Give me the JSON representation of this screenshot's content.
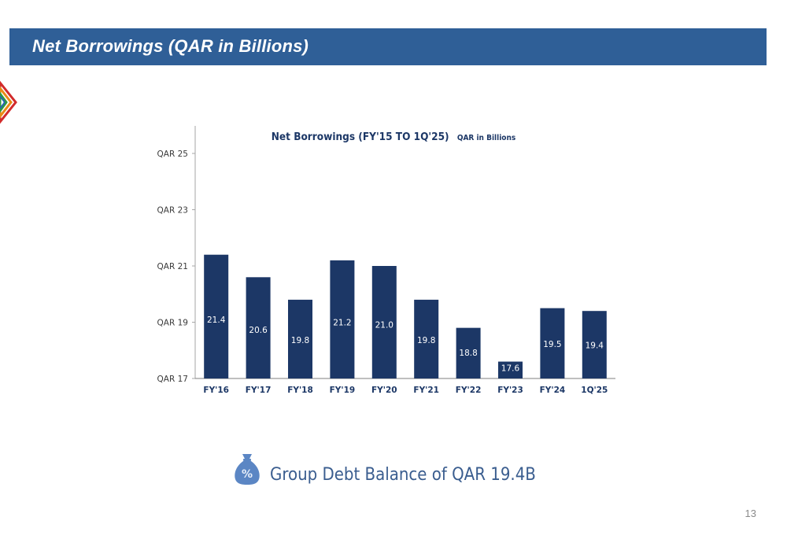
{
  "slide": {
    "title": "Net Borrowings (QAR in Billions)",
    "page_number": "13"
  },
  "callout": {
    "text": "Group Debt Balance of QAR 19.4B",
    "icon": "money-bag-percent-icon"
  },
  "colors": {
    "header": "#2f5f97",
    "bar": "#1c3766",
    "callout_text": "#3a5d8f"
  },
  "chart_data": {
    "type": "bar",
    "title": "Net Borrowings (FY'15 TO 1Q'25)",
    "subtitle": "QAR in Billions",
    "categories": [
      "FY'16",
      "FY'17",
      "FY'18",
      "FY'19",
      "FY'20",
      "FY'21",
      "FY'22",
      "FY'23",
      "FY'24",
      "1Q'25"
    ],
    "values": [
      21.4,
      20.6,
      19.8,
      21.2,
      21.0,
      19.8,
      18.8,
      17.6,
      19.5,
      19.4
    ],
    "data_labels": [
      "21.4",
      "20.6",
      "19.8",
      "21.2",
      "21.0",
      "19.8",
      "18.8",
      "17.6",
      "19.5",
      "19.4"
    ],
    "y_ticks": [
      17,
      19,
      21,
      23,
      25
    ],
    "y_tick_labels": [
      "QAR 17",
      "QAR 19",
      "QAR 21",
      "QAR 23",
      "QAR 25"
    ],
    "ylim": [
      17,
      26
    ],
    "grid": false,
    "legend": "none"
  }
}
